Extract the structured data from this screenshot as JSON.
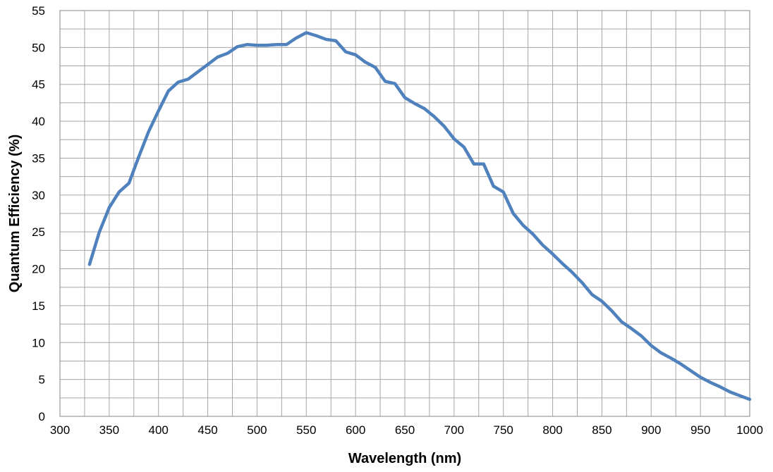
{
  "chart_data": {
    "type": "line",
    "xlabel": "Wavelength (nm)",
    "ylabel": "Quantum Efficiency (%)",
    "xlim": [
      300,
      1000
    ],
    "ylim": [
      0,
      55
    ],
    "x_ticks": [
      "300",
      "350",
      "400",
      "450",
      "500",
      "550",
      "600",
      "650",
      "700",
      "750",
      "800",
      "850",
      "900",
      "950",
      "1000"
    ],
    "y_ticks": [
      "0",
      "5",
      "10",
      "15",
      "20",
      "25",
      "30",
      "35",
      "40",
      "45",
      "50",
      "55"
    ],
    "grid": true,
    "legend": "none",
    "series": [
      {
        "color": "#4f81bd",
        "x": [
          330,
          340,
          350,
          360,
          370,
          380,
          390,
          400,
          410,
          420,
          430,
          440,
          450,
          460,
          470,
          480,
          490,
          500,
          510,
          520,
          530,
          540,
          550,
          560,
          570,
          580,
          590,
          600,
          610,
          620,
          630,
          640,
          650,
          660,
          670,
          680,
          690,
          700,
          710,
          720,
          730,
          740,
          750,
          760,
          770,
          780,
          790,
          800,
          810,
          820,
          830,
          840,
          850,
          860,
          870,
          880,
          890,
          900,
          910,
          920,
          930,
          940,
          950,
          960,
          970,
          980,
          990,
          1000
        ],
        "y": [
          20.6,
          25.0,
          28.3,
          30.4,
          31.6,
          35.2,
          38.6,
          41.4,
          44.1,
          45.3,
          45.7,
          46.7,
          47.7,
          48.7,
          49.2,
          50.1,
          50.4,
          50.3,
          50.3,
          50.4,
          50.4,
          51.3,
          52.0,
          51.6,
          51.1,
          50.9,
          49.4,
          49.0,
          48.0,
          47.3,
          45.4,
          45.1,
          43.2,
          42.4,
          41.7,
          40.6,
          39.3,
          37.6,
          36.5,
          34.2,
          34.2,
          31.2,
          30.4,
          27.5,
          25.9,
          24.7,
          23.2,
          22.0,
          20.7,
          19.5,
          18.1,
          16.5,
          15.6,
          14.3,
          12.8,
          11.9,
          10.9,
          9.6,
          8.6,
          7.9,
          7.1,
          6.2,
          5.3,
          4.6,
          4.0,
          3.3,
          2.8,
          2.3
        ]
      }
    ]
  }
}
